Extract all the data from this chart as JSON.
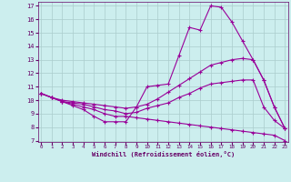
{
  "xlabel": "Windchill (Refroidissement éolien,°C)",
  "x": [
    0,
    1,
    2,
    3,
    4,
    5,
    6,
    7,
    8,
    9,
    10,
    11,
    12,
    13,
    14,
    15,
    16,
    17,
    18,
    19,
    20,
    21,
    22,
    23
  ],
  "line1": [
    10.5,
    10.2,
    9.9,
    9.6,
    9.3,
    8.8,
    8.4,
    8.4,
    8.4,
    9.5,
    11.0,
    11.1,
    11.2,
    13.3,
    15.4,
    15.2,
    17.0,
    16.9,
    15.8,
    14.4,
    13.0,
    11.5,
    9.5,
    7.9
  ],
  "line2": [
    10.5,
    10.2,
    10.0,
    9.9,
    9.8,
    9.7,
    9.6,
    9.5,
    9.4,
    9.5,
    9.7,
    10.1,
    10.6,
    11.1,
    11.6,
    12.1,
    12.6,
    12.8,
    13.0,
    13.1,
    13.0,
    11.5,
    9.5,
    7.9
  ],
  "line3": [
    10.5,
    10.2,
    9.9,
    9.8,
    9.7,
    9.5,
    9.3,
    9.2,
    9.0,
    9.1,
    9.4,
    9.6,
    9.8,
    10.2,
    10.5,
    10.9,
    11.2,
    11.3,
    11.4,
    11.5,
    11.5,
    9.5,
    8.5,
    7.9
  ],
  "line4": [
    10.5,
    10.2,
    9.9,
    9.7,
    9.5,
    9.3,
    9.0,
    8.8,
    8.8,
    8.7,
    8.6,
    8.5,
    8.4,
    8.3,
    8.2,
    8.1,
    8.0,
    7.9,
    7.8,
    7.7,
    7.6,
    7.5,
    7.4,
    7.0
  ],
  "line_color": "#990099",
  "bg_color": "#cceeee",
  "grid_color": "#aacccc",
  "ylim": [
    7,
    17
  ],
  "yticks": [
    7,
    8,
    9,
    10,
    11,
    12,
    13,
    14,
    15,
    16,
    17
  ],
  "xlim": [
    0,
    23
  ],
  "xticks": [
    0,
    1,
    2,
    3,
    4,
    5,
    6,
    7,
    8,
    9,
    10,
    11,
    12,
    13,
    14,
    15,
    16,
    17,
    18,
    19,
    20,
    21,
    22,
    23
  ]
}
